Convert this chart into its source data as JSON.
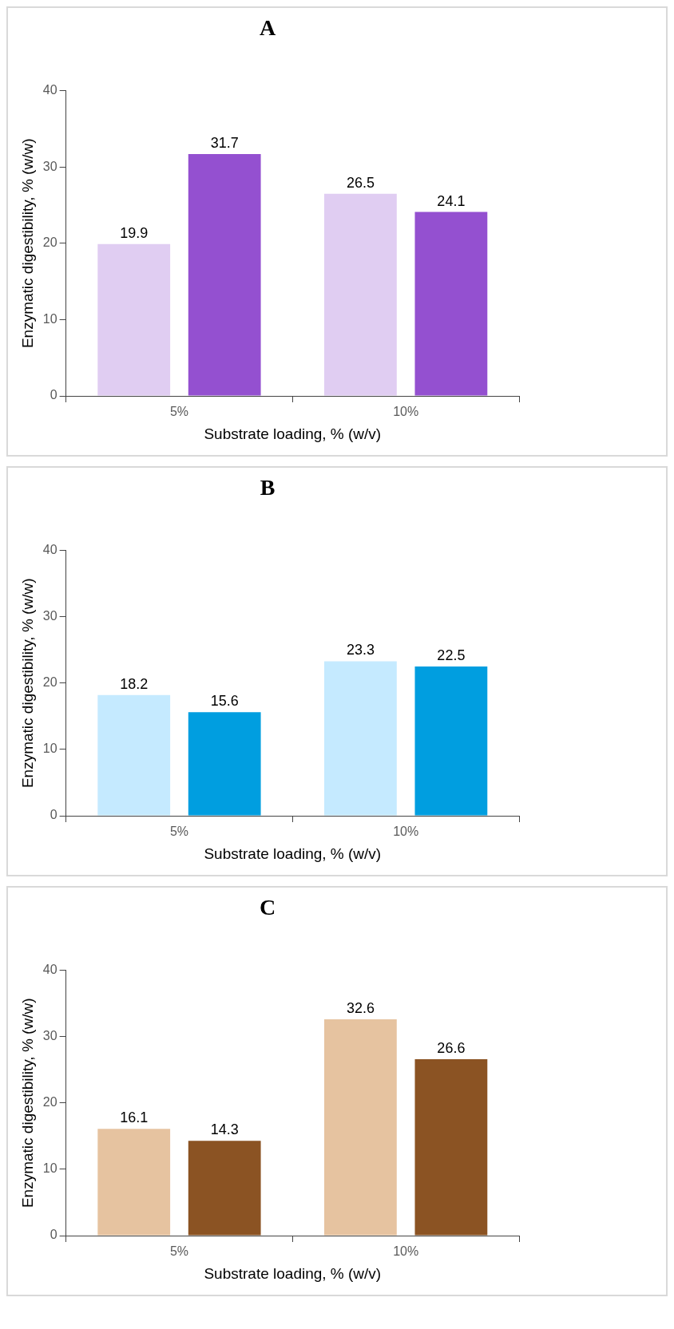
{
  "chart_data": [
    {
      "type": "bar",
      "title": "A",
      "xlabel": "Substrate loading, % (w/v)",
      "ylabel": "Enzymatic digestibility, % (w/w)",
      "categories": [
        "5%",
        "10%"
      ],
      "series": [
        {
          "color": "#e0cdf2",
          "values": [
            19.9,
            26.5
          ]
        },
        {
          "color": "#9450d0",
          "values": [
            31.7,
            24.1
          ]
        }
      ],
      "ylim": [
        0,
        40
      ],
      "yticks": [
        0,
        10,
        20,
        30,
        40
      ],
      "data_labels": true,
      "grid": false
    },
    {
      "type": "bar",
      "title": "B",
      "xlabel": "Substrate loading, % (w/v)",
      "ylabel": "Enzymatic digestibility, % (w/w)",
      "categories": [
        "5%",
        "10%"
      ],
      "series": [
        {
          "color": "#c5eaff",
          "values": [
            18.2,
            23.3
          ]
        },
        {
          "color": "#009ee0",
          "values": [
            15.6,
            22.5
          ]
        }
      ],
      "ylim": [
        0,
        40
      ],
      "yticks": [
        0,
        10,
        20,
        30,
        40
      ],
      "data_labels": true,
      "grid": false
    },
    {
      "type": "bar",
      "title": "C",
      "xlabel": "Substrate loading, % (w/v)",
      "ylabel": "Enzymatic digestibility, % (w/w)",
      "categories": [
        "5%",
        "10%"
      ],
      "series": [
        {
          "color": "#e6c3a0",
          "values": [
            16.1,
            32.6
          ]
        },
        {
          "color": "#8b5323",
          "values": [
            14.3,
            26.6
          ]
        }
      ],
      "ylim": [
        0,
        40
      ],
      "yticks": [
        0,
        10,
        20,
        30,
        40
      ],
      "data_labels": true,
      "grid": false
    }
  ]
}
